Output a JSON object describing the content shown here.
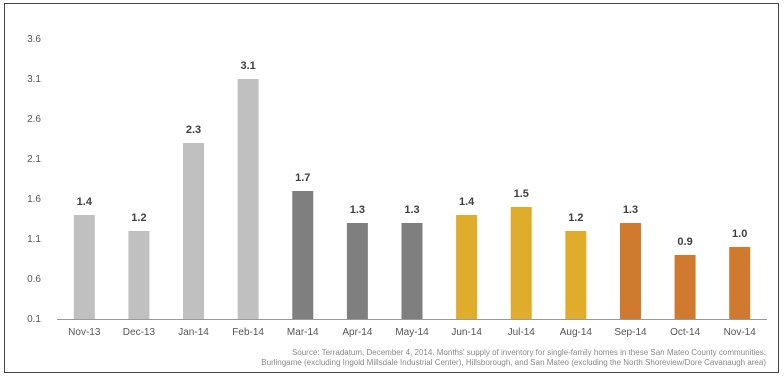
{
  "chart_data": {
    "type": "bar",
    "title": "",
    "xlabel": "",
    "ylabel": "",
    "categories": [
      "Nov-13",
      "Dec-13",
      "Jan-14",
      "Feb-14",
      "Mar-14",
      "Apr-14",
      "May-14",
      "Jun-14",
      "Jul-14",
      "Aug-14",
      "Sep-14",
      "Oct-14",
      "Nov-14"
    ],
    "values": [
      1.4,
      1.2,
      2.3,
      3.1,
      1.7,
      1.3,
      1.3,
      1.4,
      1.5,
      1.2,
      1.3,
      0.9,
      1.0
    ],
    "data_labels": [
      "1.4",
      "1.2",
      "2.3",
      "3.1",
      "1.7",
      "1.3",
      "1.3",
      "1.4",
      "1.5",
      "1.2",
      "1.3",
      "0.9",
      "1.0"
    ],
    "bar_colors": [
      "#c0c0c0",
      "#c0c0c0",
      "#c0c0c0",
      "#c0c0c0",
      "#7f7f7f",
      "#7f7f7f",
      "#7f7f7f",
      "#e0ac2b",
      "#e0ac2b",
      "#e0ac2b",
      "#cf7a2e",
      "#cf7a2e",
      "#cf7a2e"
    ],
    "yticks": [
      0.1,
      0.6,
      1.1,
      1.6,
      2.1,
      2.6,
      3.1,
      3.6
    ],
    "ytick_labels": [
      "0.1",
      "0.6",
      "1.1",
      "1.6",
      "2.1",
      "2.6",
      "3.1",
      "3.6"
    ],
    "ylim": [
      0.1,
      3.6
    ],
    "grid": false,
    "legend": "none"
  },
  "source": {
    "line1": "Source: Terradatum, December 4, 2014. Months' supply of inventory for single-family homes in these San Mateo County communities:",
    "line2": "Burlingame (excluding Ingold Millsdale Industrial Center), Hillsborough, and San Mateo (excluding the North Shoreview/Dore Cavanaugh area)"
  },
  "colors": {
    "axis": "#999999",
    "frame": "#444444"
  }
}
